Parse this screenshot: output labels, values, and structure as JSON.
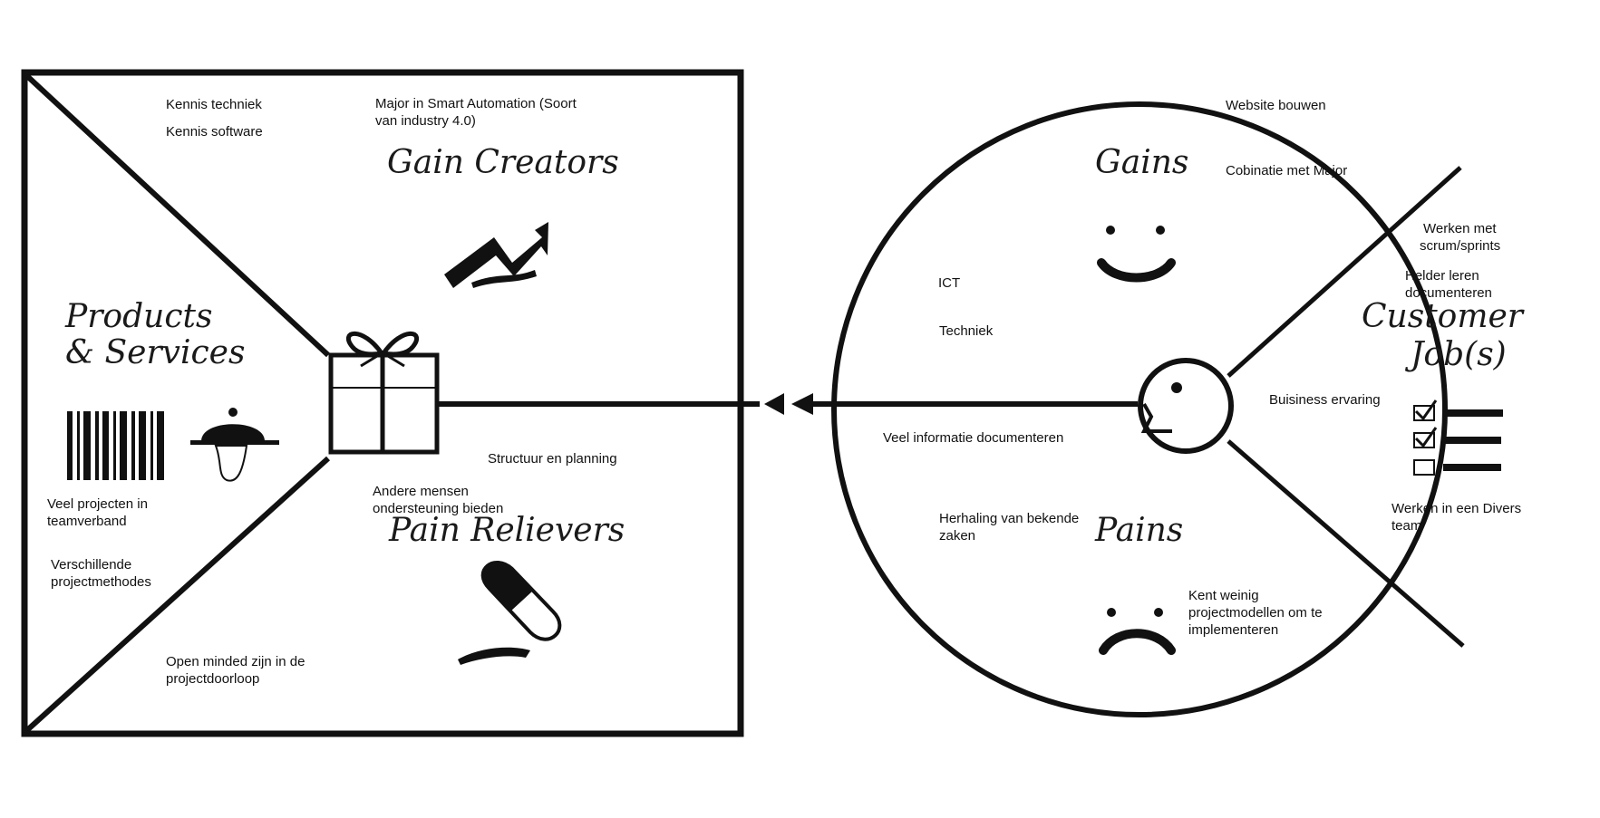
{
  "value_map": {
    "headings": {
      "gain_creators": "Gain Creators",
      "products_services_line1": "Products",
      "products_services_line2": "& Services",
      "pain_relievers": "Pain Relievers"
    },
    "notes": {
      "kennis_techniek": "Kennis techniek",
      "kennis_software": "Kennis software",
      "major_smart_automation_line1": "Major in Smart Automation (Soort",
      "major_smart_automation_line2": "van industry 4.0)",
      "veel_projecten_line1": "Veel projecten in",
      "veel_projecten_line2": "teamverband",
      "verschillende_line1": "Verschillende",
      "verschillende_line2": "projectmethodes",
      "open_minded_line1": "Open minded zijn in de",
      "open_minded_line2": "projectdoorloop",
      "structuur": "Structuur en planning",
      "andere_mensen_line1": "Andere mensen",
      "andere_mensen_line2": "ondersteuning bieden"
    }
  },
  "customer_profile": {
    "headings": {
      "gains": "Gains",
      "pains": "Pains",
      "customer_jobs_line1": "Customer",
      "customer_jobs_line2": "Job(s)"
    },
    "notes": {
      "website": "Website bouwen",
      "cobinatie": "Cobinatie met Major",
      "ict": "ICT",
      "techniek": "Techniek",
      "werken_met_line1": "Werken met",
      "werken_met_line2": "scrum/sprints",
      "helder_line1": "Helder leren",
      "helder_line2": "documenteren",
      "buisiness": "Buisiness ervaring",
      "veel_informatie": "Veel informatie documenteren",
      "herhaling_line1": "Herhaling van bekende",
      "herhaling_line2": "zaken",
      "werken_divers_line1": "Werken in een Divers",
      "werken_divers_line2": "team",
      "kent_weinig_line1": "Kent weinig",
      "kent_weinig_line2": "projectmodellen om te",
      "kent_weinig_line3": "implementeren"
    }
  },
  "icons": [
    "trend-arrow-icon",
    "gift-icon",
    "barcode-icon",
    "serving-cloche-icon",
    "pill-icon",
    "smiley-icon",
    "frown-icon",
    "customer-head-icon",
    "checklist-icon",
    "arrow-left-icon"
  ],
  "colors": {
    "ink": "#111111",
    "background": "#ffffff"
  }
}
